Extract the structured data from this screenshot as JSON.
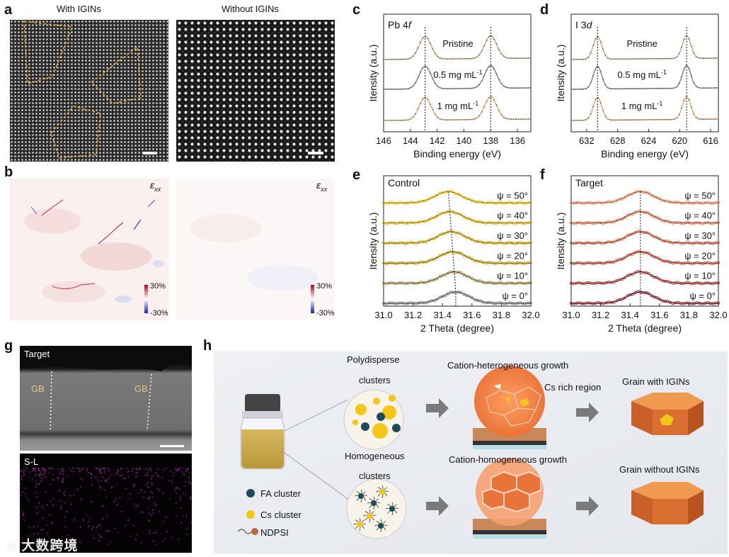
{
  "figure": {
    "panel_labels": {
      "a": "a",
      "b": "b",
      "c": "c",
      "d": "d",
      "e": "e",
      "f": "f",
      "g": "g",
      "h": "h"
    },
    "panel_a": {
      "left_title": "With IGINs",
      "right_title": "Without IGINs"
    },
    "panel_b": {
      "strain_symbol": "ε",
      "strain_sub": "xx",
      "cbar_max": "30%",
      "cbar_min": "-30%"
    },
    "panel_g": {
      "top_label": "Target",
      "gb_label": "GB",
      "bottom_label": "S-L"
    },
    "panel_h": {
      "polydisperse_line1": "Polydisperse",
      "polydisperse_line2": "clusters",
      "homogeneous_line1": "Homogeneous",
      "homogeneous_line2": "clusters",
      "hetero_growth": "Cation-heterogeneous growth",
      "homo_growth": "Cation-homogeneous growth",
      "cs_region": "Cs rich region",
      "grain_with": "Grain with IGINs",
      "grain_without": "Grain without IGINs",
      "legend_fa": "FA cluster",
      "legend_cs": "Cs cluster",
      "legend_ndpsi": "NDPSI",
      "colors": {
        "fa": "#1e4a5a",
        "cs": "#f5c518",
        "grain": "#e07a2c"
      }
    },
    "watermark": "大数跨境"
  },
  "chart_data": [
    {
      "id": "c",
      "type": "line",
      "title": "Pb 4f",
      "title_main": "Pb 4",
      "title_italic": "f",
      "xlabel": "Binding energy (eV)",
      "ylabel": "Itensity (a.u.)",
      "xlim": [
        146,
        135
      ],
      "xticks": [
        146,
        144,
        142,
        140,
        138,
        136
      ],
      "peaks": [
        142.9,
        138.0
      ],
      "series": [
        {
          "name": "Pristine",
          "label_main": "Pristine",
          "label_sup": "",
          "color": "#c99a6a"
        },
        {
          "name": "0.5 mg mL-1",
          "label_main": "0.5 mg mL",
          "label_sup": "-1",
          "color": "#777777"
        },
        {
          "name": "1 mg mL-1",
          "label_main": "1 mg mL",
          "label_sup": "-1",
          "color": "#e8a15a"
        }
      ]
    },
    {
      "id": "d",
      "type": "line",
      "title": "I 3d",
      "title_main": "I 3",
      "title_italic": "d",
      "xlabel": "Binding energy (eV)",
      "ylabel": "Itensity (a.u.)",
      "xlim": [
        634,
        615
      ],
      "xticks": [
        632,
        628,
        624,
        620,
        616
      ],
      "peaks": [
        630.6,
        619.1
      ],
      "series": [
        {
          "name": "Pristine",
          "label_main": "Pristine",
          "label_sup": "",
          "color": "#c99a6a"
        },
        {
          "name": "0.5 mg mL-1",
          "label_main": "0.5 mg mL",
          "label_sup": "-1",
          "color": "#777777"
        },
        {
          "name": "1 mg mL-1",
          "label_main": "1 mg mL",
          "label_sup": "-1",
          "color": "#e8a15a"
        }
      ]
    },
    {
      "id": "e",
      "type": "line",
      "title": "Control",
      "xlabel": "2 Theta (degree)",
      "ylabel": "Itensity (a.u.)",
      "xlim": [
        31.0,
        32.0
      ],
      "xticks": [
        "31.0",
        "31.2",
        "31.4",
        "31.6",
        "31.8",
        "32.0"
      ],
      "series": [
        {
          "name": "ψ = 50°",
          "peak": 31.44,
          "color": "#f2c200"
        },
        {
          "name": "ψ = 40°",
          "peak": 31.45,
          "color": "#e6b400"
        },
        {
          "name": "ψ = 30°",
          "peak": 31.46,
          "color": "#d9a800"
        },
        {
          "name": "ψ = 20°",
          "peak": 31.47,
          "color": "#c89900"
        },
        {
          "name": "ψ = 10°",
          "peak": 31.48,
          "color": "#a08a40"
        },
        {
          "name": "ψ = 0°",
          "peak": 31.49,
          "color": "#777777"
        }
      ]
    },
    {
      "id": "f",
      "type": "line",
      "title": "Target",
      "xlabel": "2 Theta (degree)",
      "ylabel": "Itensity (a.u.)",
      "xlim": [
        31.0,
        32.0
      ],
      "xticks": [
        "31.0",
        "31.2",
        "31.4",
        "31.6",
        "31.8",
        "32.0"
      ],
      "series": [
        {
          "name": "ψ = 50°",
          "peak": 31.47,
          "color": "#f08a5a"
        },
        {
          "name": "ψ = 40°",
          "peak": 31.47,
          "color": "#e57048"
        },
        {
          "name": "ψ = 30°",
          "peak": 31.47,
          "color": "#da5a3a"
        },
        {
          "name": "ψ = 20°",
          "peak": 31.47,
          "color": "#c8402c"
        },
        {
          "name": "ψ = 10°",
          "peak": 31.47,
          "color": "#b02828"
        },
        {
          "name": "ψ = 0°",
          "peak": 31.47,
          "color": "#8a1620"
        }
      ]
    }
  ]
}
